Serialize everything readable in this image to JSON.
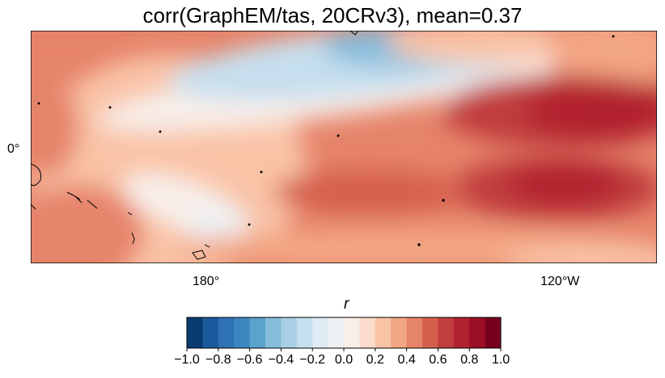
{
  "title": "corr(GraphEM/tas, 20CRv3), mean=0.37",
  "axes": {
    "x_ticks": [
      "180°",
      "120°W"
    ],
    "y_ticks": [
      "0°"
    ]
  },
  "colorbar": {
    "label": "r",
    "range": [
      -1.0,
      1.0
    ],
    "ticks": [
      "−1.0",
      "−0.8",
      "−0.6",
      "−0.4",
      "−0.2",
      "0.0",
      "0.2",
      "0.4",
      "0.6",
      "0.8",
      "1.0"
    ],
    "colors": [
      "#0a3b70",
      "#1b5a9c",
      "#2e72b3",
      "#3d87c0",
      "#5aa3cc",
      "#86bcdb",
      "#a8cfe4",
      "#c6dfee",
      "#deebf2",
      "#edf1f4",
      "#f8efea",
      "#fcdccd",
      "#f9c3a6",
      "#f3a683",
      "#e6846a",
      "#d6604d",
      "#c13e3e",
      "#b2212f",
      "#9a0f25",
      "#77001f"
    ]
  },
  "map": {
    "land_color": "#d9dcd6",
    "mean": 0.37
  }
}
